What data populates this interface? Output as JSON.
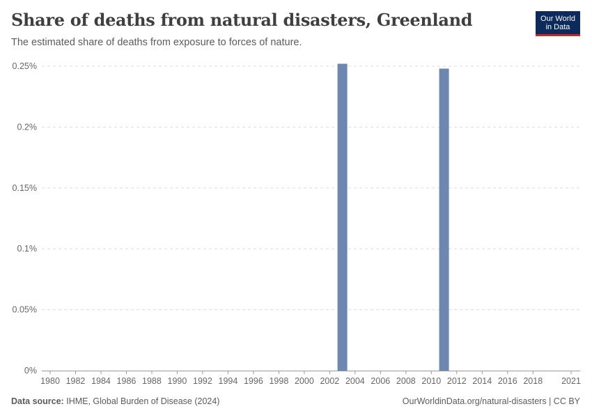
{
  "header": {
    "title": "Share of deaths from natural disasters, Greenland",
    "subtitle": "The estimated share of deaths from exposure to forces of nature."
  },
  "logo": {
    "line1": "Our World",
    "line2": "in Data"
  },
  "footer": {
    "source_label": "Data source:",
    "source_text": "IHME, Global Burden of Disease (2024)",
    "url_text": "OurWorldinData.org/natural-disasters",
    "separator": "|",
    "license": "CC BY"
  },
  "colors": {
    "bar": "#6d87b0",
    "brand": "#0d2a5c",
    "brand_accent": "#ce261e"
  },
  "chart_data": {
    "type": "bar",
    "title": "Share of deaths from natural disasters, Greenland",
    "subtitle": "The estimated share of deaths from exposure to forces of nature.",
    "xlabel": "",
    "ylabel": "",
    "x_range": [
      1980,
      2021
    ],
    "ylim": [
      0,
      0.25
    ],
    "y_ticks": [
      0,
      0.05,
      0.1,
      0.15,
      0.2,
      0.25
    ],
    "y_tick_labels": [
      "0%",
      "0.05%",
      "0.1%",
      "0.15%",
      "0.2%",
      "0.25%"
    ],
    "x_ticks": [
      1980,
      1982,
      1984,
      1986,
      1988,
      1990,
      1992,
      1994,
      1996,
      1998,
      2000,
      2002,
      2004,
      2006,
      2008,
      2010,
      2012,
      2014,
      2016,
      2018,
      2021
    ],
    "unit": "%",
    "series": [
      {
        "name": "Greenland",
        "x": [
          2003,
          2011
        ],
        "values": [
          0.252,
          0.248
        ]
      }
    ],
    "grid": true
  }
}
